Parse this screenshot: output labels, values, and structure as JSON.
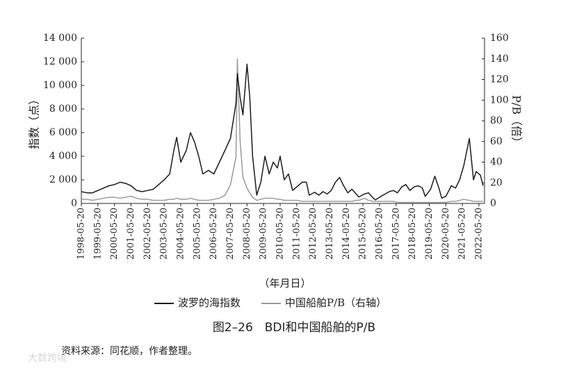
{
  "chart_data": {
    "type": "line",
    "caption": "图2–26　BDI和中国船舶的P/B",
    "source": "资料来源：同花顺，作者整理。",
    "watermark": "大数跨境",
    "ylabel": "指数（点）",
    "y2label": "P/B（倍）",
    "xlabel": "（年月日）",
    "x": [
      "1998-05-20",
      "1998-09-20",
      "1999-01-20",
      "1999-05-20",
      "1999-09-20",
      "2000-01-20",
      "2000-05-20",
      "2000-09-20",
      "2001-01-20",
      "2001-05-20",
      "2001-09-20",
      "2002-01-20",
      "2002-05-20",
      "2002-09-20",
      "2003-01-20",
      "2003-05-20",
      "2003-09-20",
      "2003-12-20",
      "2004-02-20",
      "2004-05-20",
      "2004-09-20",
      "2004-12-20",
      "2005-03-20",
      "2005-06-20",
      "2005-09-20",
      "2006-01-20",
      "2006-05-20",
      "2006-09-20",
      "2007-01-20",
      "2007-05-20",
      "2007-09-20",
      "2007-10-20",
      "2007-12-20",
      "2008-02-20",
      "2008-05-20",
      "2008-07-20",
      "2008-09-20",
      "2008-12-20",
      "2009-03-20",
      "2009-06-20",
      "2009-09-20",
      "2009-12-20",
      "2010-03-20",
      "2010-05-20",
      "2010-08-20",
      "2010-11-20",
      "2011-02-20",
      "2011-05-20",
      "2011-09-20",
      "2011-12-20",
      "2012-02-20",
      "2012-06-20",
      "2012-09-20",
      "2012-12-20",
      "2013-03-20",
      "2013-06-20",
      "2013-09-20",
      "2013-12-20",
      "2014-03-20",
      "2014-06-20",
      "2014-09-20",
      "2014-12-20",
      "2015-02-20",
      "2015-06-20",
      "2015-09-20",
      "2015-12-20",
      "2016-02-20",
      "2016-06-20",
      "2016-09-20",
      "2016-12-20",
      "2017-03-20",
      "2017-06-20",
      "2017-09-20",
      "2017-12-20",
      "2018-03-20",
      "2018-06-20",
      "2018-09-20",
      "2018-12-20",
      "2019-02-20",
      "2019-06-20",
      "2019-09-20",
      "2019-12-20",
      "2020-02-20",
      "2020-05-20",
      "2020-09-20",
      "2020-12-20",
      "2021-03-20",
      "2021-06-20",
      "2021-10-20",
      "2022-01-20",
      "2022-03-20",
      "2022-06-20",
      "2022-08-20"
    ],
    "series": [
      {
        "name": "波罗的海指数",
        "color": "#1a1a1a",
        "values": [
          1000,
          900,
          900,
          1100,
          1300,
          1500,
          1600,
          1800,
          1700,
          1500,
          1100,
          1000,
          1100,
          1200,
          1600,
          2000,
          2500,
          4500,
          5600,
          3500,
          4500,
          6000,
          5200,
          4000,
          2500,
          2800,
          2500,
          3500,
          4500,
          5500,
          8500,
          11000,
          9000,
          7500,
          11800,
          9000,
          4000,
          700,
          1800,
          4000,
          2500,
          3500,
          3000,
          4000,
          2000,
          2500,
          1100,
          1400,
          1800,
          1800,
          700,
          950,
          700,
          1000,
          800,
          1100,
          1800,
          2200,
          1500,
          900,
          1200,
          800,
          550,
          800,
          900,
          500,
          300,
          600,
          800,
          1000,
          1100,
          900,
          1400,
          1600,
          1100,
          1400,
          1500,
          1300,
          600,
          1200,
          2300,
          1300,
          450,
          600,
          1500,
          1300,
          2000,
          3200,
          5500,
          2000,
          2700,
          2400,
          1500
        ]
      },
      {
        "name": "中国船舶P/B（右轴）",
        "color": "#9a9a9a",
        "axis": "y2",
        "values": [
          4,
          4,
          3,
          4,
          5,
          6,
          6,
          5,
          6,
          7,
          5,
          4,
          4,
          3,
          3,
          3,
          4,
          4,
          5,
          4,
          4,
          5,
          4,
          3,
          3,
          3,
          4,
          5,
          8,
          18,
          45,
          140,
          60,
          25,
          15,
          10,
          6,
          3,
          4,
          5,
          5,
          5,
          4,
          4,
          3,
          3,
          3,
          3,
          2,
          2,
          2,
          2,
          2,
          2,
          2,
          2,
          2,
          2,
          2,
          2,
          2,
          3,
          3,
          5,
          3,
          2,
          2,
          2,
          2,
          2,
          2,
          1,
          1,
          1,
          1,
          1,
          1,
          1,
          1,
          1,
          1,
          1,
          1,
          1,
          2,
          2,
          3,
          4,
          3,
          2,
          2,
          2,
          2
        ]
      }
    ],
    "xlim": [
      "1998-05-20",
      "2022-09-20"
    ],
    "xticks": [
      "1998-05-20",
      "1999-05-20",
      "2000-05-20",
      "2001-05-20",
      "2002-05-20",
      "2003-05-20",
      "2004-05-20",
      "2005-05-20",
      "2006-05-20",
      "2007-05-20",
      "2008-05-20",
      "2009-05-20",
      "2010-05-20",
      "2011-05-20",
      "2012-05-20",
      "2013-05-20",
      "2014-05-20",
      "2015-05-20",
      "2016-05-20",
      "2017-05-20",
      "2018-05-20",
      "2019-05-20",
      "2020-05-20",
      "2021-05-20",
      "2022-05-20"
    ],
    "ylim": [
      0,
      14000
    ],
    "yticks": [
      0,
      {
        "value": 2000,
        "label": "2 000"
      },
      {
        "value": 4000,
        "label": "4 000"
      },
      {
        "value": 6000,
        "label": "6 000"
      },
      {
        "value": 8000,
        "label": "8 000"
      },
      {
        "value": 10000,
        "label": "10 000"
      },
      {
        "value": 12000,
        "label": "12 000"
      },
      {
        "value": 14000,
        "label": "14 000"
      }
    ],
    "y2lim": [
      0,
      160
    ],
    "y2ticks": [
      0,
      20,
      40,
      60,
      80,
      100,
      120,
      140,
      160
    ]
  }
}
